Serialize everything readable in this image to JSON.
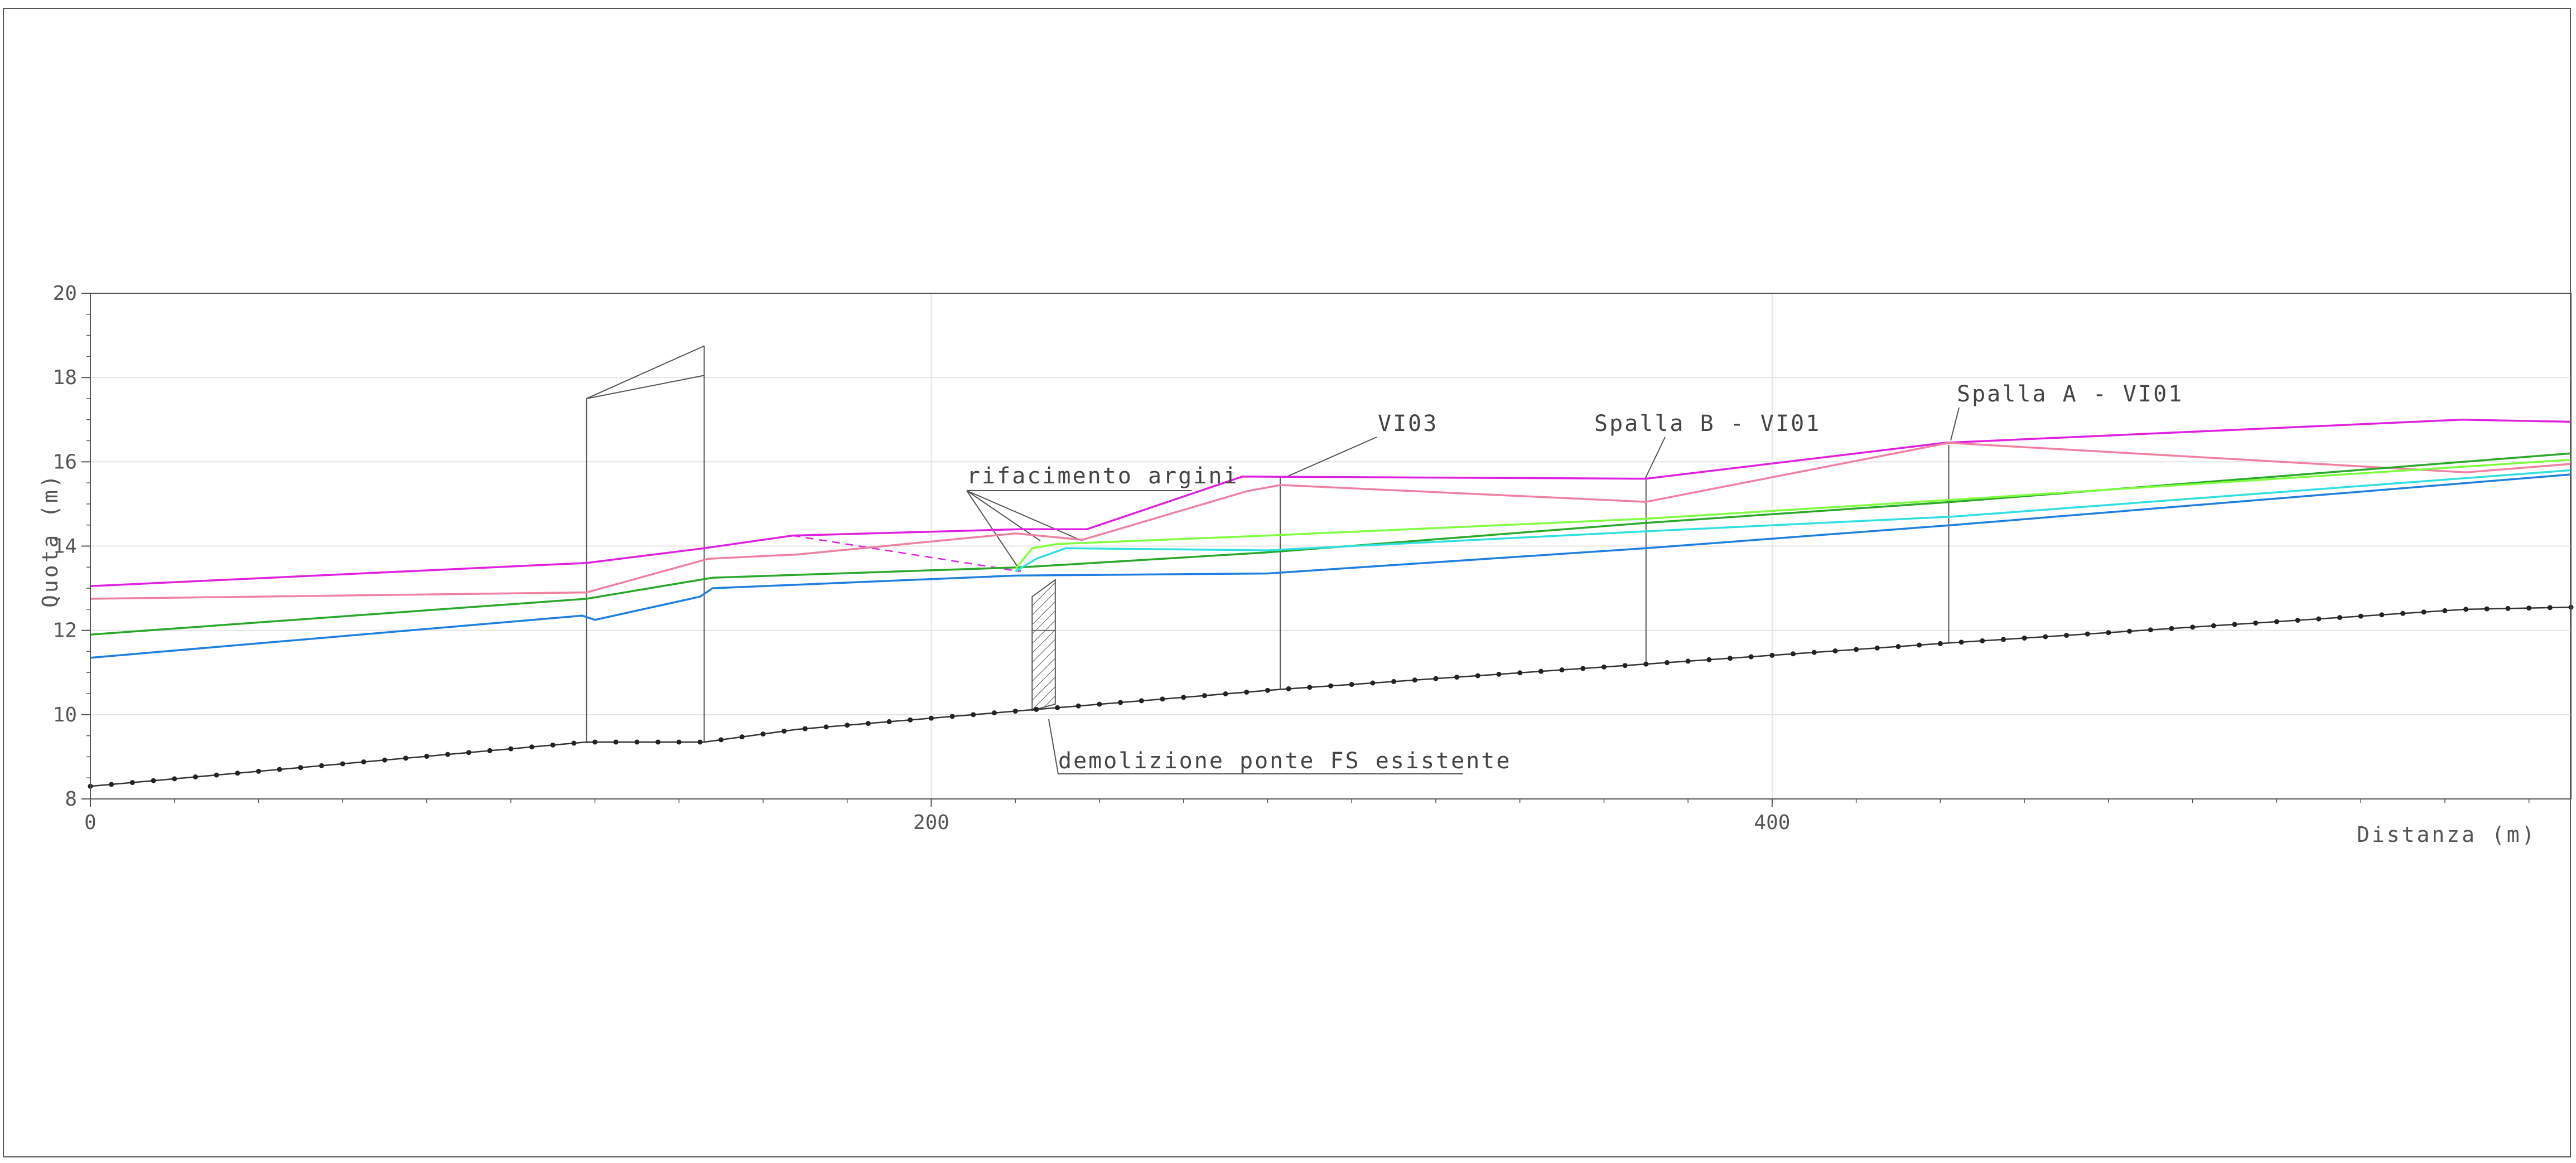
{
  "chart_data": {
    "type": "line",
    "title": "",
    "xlabel": "Distanza (m)",
    "ylabel": "Quota (m)",
    "xlim": [
      0,
      590
    ],
    "ylim": [
      8,
      20
    ],
    "x_ticks": [
      "0",
      "200",
      "400"
    ],
    "y_ticks": [
      "8",
      "10",
      "12",
      "14",
      "16",
      "18",
      "20"
    ],
    "grid": true,
    "legend": "none",
    "series": [
      {
        "color": "#e020e0",
        "style": "solid",
        "x": [
          0,
          118,
          146,
          167,
          221,
          237,
          274,
          370,
          441,
          564,
          590
        ],
        "y": [
          13.05,
          13.6,
          13.95,
          14.25,
          14.4,
          14.4,
          15.65,
          15.6,
          16.45,
          17.0,
          16.95
        ]
      },
      {
        "color": "#f080a0",
        "style": "solid",
        "x": [
          0,
          118,
          147,
          168,
          220,
          236,
          275,
          283,
          370,
          442,
          565,
          590
        ],
        "y": [
          12.75,
          12.9,
          13.7,
          13.8,
          14.3,
          14.15,
          15.3,
          15.45,
          15.05,
          16.45,
          15.75,
          15.95
        ]
      },
      {
        "color": "#2aa82a",
        "style": "solid",
        "x": [
          0,
          118,
          148,
          222,
          280,
          370,
          443,
          590
        ],
        "y": [
          11.9,
          12.75,
          13.25,
          13.5,
          13.85,
          14.55,
          15.05,
          16.2
        ]
      },
      {
        "color": "#80ff40",
        "style": "solid",
        "x": [
          220,
          224,
          230,
          280,
          370,
          443,
          590
        ],
        "y": [
          13.45,
          13.95,
          14.05,
          14.25,
          14.65,
          15.1,
          16.05
        ]
      },
      {
        "color": "#30e0e0",
        "style": "solid",
        "x": [
          220,
          225,
          232,
          280,
          370,
          443,
          590
        ],
        "y": [
          13.4,
          13.7,
          13.95,
          13.9,
          14.35,
          14.7,
          15.8
        ]
      },
      {
        "color": "#1e7fe0",
        "style": "solid",
        "x": [
          0,
          117,
          120,
          145,
          148,
          220,
          280,
          370,
          443,
          590
        ],
        "y": [
          11.35,
          12.35,
          12.25,
          12.8,
          13.0,
          13.3,
          13.35,
          13.95,
          14.5,
          15.7
        ]
      },
      {
        "color": "#333333",
        "style": "dotted-markers",
        "x": [
          0,
          118,
          146,
          168,
          222,
          283,
          370,
          442,
          565,
          590
        ],
        "y": [
          8.3,
          9.35,
          9.35,
          9.65,
          10.1,
          10.6,
          11.2,
          11.7,
          12.5,
          12.55
        ]
      }
    ],
    "annotations": [
      {
        "text": "rifacimento argini"
      },
      {
        "text": "VI03"
      },
      {
        "text": "Spalla B - VI01"
      },
      {
        "text": "Spalla A - VI01"
      },
      {
        "text": "demolizione ponte FS esistente"
      }
    ],
    "structures": {
      "bridge_verticals_x": [
        118,
        146
      ],
      "bridge_tops_y": [
        17.5,
        18.75
      ],
      "bridge_inner_y": 18.05,
      "bridge_base_y": 9.35,
      "dashed_levee": {
        "x": [
          167,
          221
        ],
        "y": [
          14.25,
          13.4
        ]
      },
      "spalla_x": [
        283,
        370,
        442
      ],
      "spalla_top_y": [
        15.65,
        15.65,
        16.4
      ],
      "demolition_hatch": {
        "x0": 224,
        "x1": 229.5,
        "y_low": 10.1,
        "y_high": 13.2
      }
    }
  },
  "colors": {
    "axis": "#555555",
    "grid": "#e4e4e4",
    "annotation": "#444444"
  }
}
